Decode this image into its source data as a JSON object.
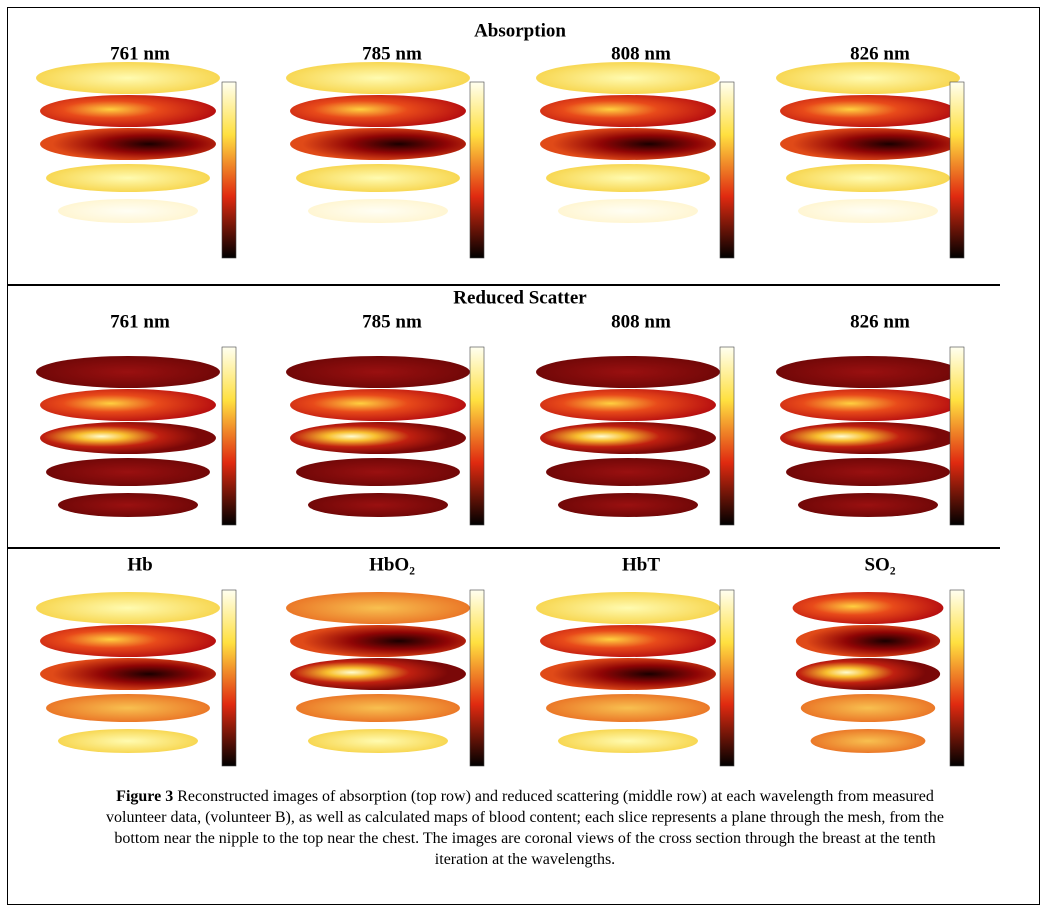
{
  "panels": [
    {
      "title": "Absorption",
      "columns": [
        "761 nm",
        "785 nm",
        "808 nm",
        "826 nm"
      ]
    },
    {
      "title": "Reduced Scatter",
      "columns": [
        "761 nm",
        "785 nm",
        "808 nm",
        "826 nm"
      ]
    },
    {
      "columns": [
        "Hb",
        "HbO₂",
        "HbT",
        "SO₂"
      ]
    }
  ],
  "caption": {
    "label": "Figure 3",
    "text": "Reconstructed images of absorption (top row) and reduced scattering (middle row) at each wavelength from measured volunteer data, (volunteer B), as well as calculated maps of blood content; each slice represents a plane through the mesh, from the bottom near the nipple to the top near the chest. The images are coronal views of the cross section through the breast at the tenth iteration at the wavelengths."
  }
}
